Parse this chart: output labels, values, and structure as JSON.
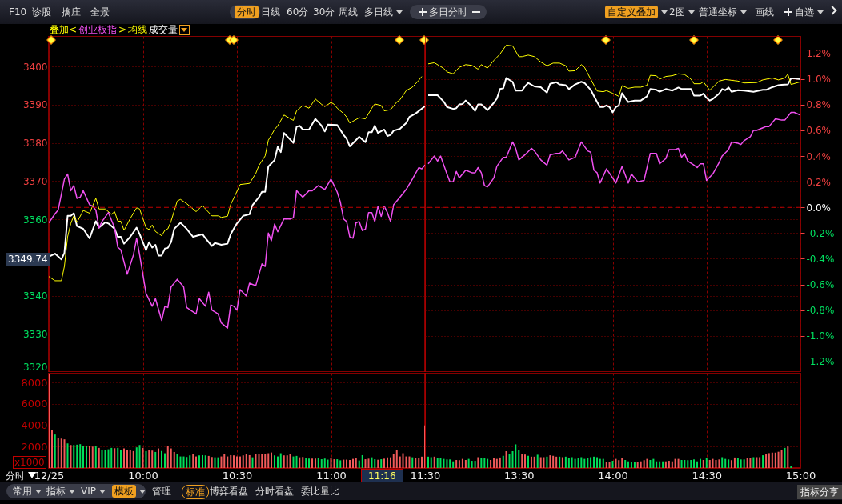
{
  "chart_data": [
    {
      "type": "other",
      "annotations": [
        "F10",
        "诊股",
        "擒庄",
        "全景",
        "分时",
        "日线",
        "60分",
        "30分",
        "周线",
        "多日线",
        "多日分时",
        "自定义叠加",
        "2图",
        "普通坐标",
        "画线",
        "自选"
      ]
    },
    {
      "type": "line",
      "annotations": [
        "叠加<",
        ">",
        "3349.74"
      ],
      "xlim": [
        9.5,
        11.5
      ],
      "xticks": [
        9.5,
        10,
        10.5,
        11,
        11.5
      ],
      "ylim": [
        3320,
        3408
      ],
      "yticks": [
        3320,
        3330,
        3340,
        {
          "value": 3350,
          "label": null
        },
        3360,
        3370,
        3380,
        3390,
        3400
      ],
      "y2lim": [
        -1.282,
        1.335
      ],
      "grid": true,
      "tick_labels": "y",
      "ref_lines": [
        {
          "axis": "y2",
          "value": 0,
          "color": "#c00000",
          "line_style": "dashed"
        }
      ],
      "series": [
        {
          "color": "#ffffff",
          "x": [
            9.5,
            9.533,
            9.567,
            9.583,
            9.6,
            9.617,
            9.633,
            9.65,
            9.683,
            9.717,
            9.75,
            9.767,
            9.8,
            9.817,
            9.85,
            9.867,
            9.883,
            9.9,
            9.933,
            9.967,
            9.983,
            10.017,
            10.033,
            10.05,
            10.067,
            10.083,
            10.1,
            10.117,
            10.133,
            10.15,
            10.167,
            10.2,
            10.233,
            10.267,
            10.317,
            10.333,
            10.367,
            10.383,
            10.417,
            10.45,
            10.467,
            10.483,
            10.5,
            10.533,
            10.567,
            10.583,
            10.617,
            10.633,
            10.65,
            10.667,
            10.7,
            10.717,
            10.733,
            10.75,
            10.8,
            10.817,
            10.833,
            10.85,
            10.883,
            10.917,
            10.95,
            10.967,
            10.983,
            11.033,
            11.067,
            11.083,
            11.1,
            11.15,
            11.183,
            11.2,
            11.217,
            11.233,
            11.25,
            11.283,
            11.3,
            11.317,
            11.333,
            11.367,
            11.4,
            11.417,
            11.45,
            11.5
          ],
          "values": [
            3350.2,
            3351.0,
            3349.5,
            3351.2,
            3360.9,
            3360.9,
            3361.6,
            3358.2,
            3357.5,
            3355.0,
            3359.5,
            3357.8,
            3359.2,
            3358.9,
            3357.5,
            3355.4,
            3355.4,
            3353.6,
            3355.4,
            3357.8,
            3356.1,
            3351.9,
            3354.0,
            3352.6,
            3353.3,
            3350.5,
            3350.5,
            3352.3,
            3352.5,
            3354.0,
            3357.5,
            3359.1,
            3357.5,
            3355.4,
            3356.1,
            3355.0,
            3353.0,
            3353.8,
            3353.3,
            3353.6,
            3356.1,
            3357.5,
            3358.9,
            3360.9,
            3361.3,
            3363.7,
            3365.8,
            3367.2,
            3367.2,
            3373.8,
            3375.5,
            3379.0,
            3377.6,
            3382.6,
            3380.0,
            3384.2,
            3384.5,
            3383.5,
            3383.5,
            3386.3,
            3384.5,
            3383.0,
            3384.8,
            3384.7,
            3382.1,
            3381.1,
            3379.1,
            3381.6,
            3380.2,
            3382.8,
            3382.8,
            3384.5,
            3382.6,
            3383.5,
            3381.8,
            3382.1,
            3383.2,
            3383.7,
            3385.2,
            3386.8,
            3387.7,
            3389.6
          ]
        },
        {
          "name": "创业板指",
          "color": "#f050f0",
          "axis": "y2",
          "x": [
            9.5,
            9.533,
            9.55,
            9.583,
            9.6,
            9.617,
            9.633,
            9.65,
            9.667,
            9.683,
            9.717,
            9.733,
            9.75,
            9.767,
            9.783,
            9.817,
            9.85,
            9.867,
            9.883,
            9.917,
            9.95,
            9.967,
            9.983,
            10.017,
            10.05,
            10.067,
            10.1,
            10.117,
            10.133,
            10.15,
            10.183,
            10.217,
            10.233,
            10.283,
            10.3,
            10.333,
            10.35,
            10.367,
            10.4,
            10.417,
            10.45,
            10.467,
            10.483,
            10.5,
            10.517,
            10.55,
            10.567,
            10.6,
            10.633,
            10.65,
            10.667,
            10.683,
            10.7,
            10.717,
            10.75,
            10.783,
            10.8,
            10.817,
            10.85,
            10.883,
            10.9,
            10.933,
            10.967,
            11,
            11.033,
            11.05,
            11.067,
            11.083,
            11.1,
            11.117,
            11.133,
            11.15,
            11.167,
            11.183,
            11.2,
            11.217,
            11.233,
            11.25,
            11.267,
            11.283,
            11.3,
            11.317,
            11.333,
            11.367,
            11.4,
            11.433,
            11.467,
            11.483,
            11.5
          ],
          "values": [
            -0.12,
            -0.05,
            -0.02,
            0.22,
            0.26,
            0.13,
            0.17,
            0.07,
            0.08,
            0.13,
            0.02,
            0.01,
            -0.02,
            -0.16,
            -0.11,
            -0.04,
            -0.16,
            -0.31,
            -0.33,
            -0.52,
            -0.37,
            -0.24,
            -0.37,
            -0.67,
            -0.77,
            -0.71,
            -0.88,
            -0.77,
            -0.78,
            -0.62,
            -0.56,
            -0.62,
            -0.78,
            -0.83,
            -0.71,
            -0.77,
            -0.66,
            -0.8,
            -0.83,
            -0.9,
            -0.94,
            -0.76,
            -0.77,
            -0.8,
            -0.64,
            -0.69,
            -0.59,
            -0.61,
            -0.44,
            -0.46,
            -0.2,
            -0.26,
            -0.13,
            -0.19,
            -0.09,
            -0.09,
            -0.08,
            0.13,
            0.08,
            0.13,
            0.13,
            0.17,
            0.14,
            0.22,
            0.12,
            0.04,
            -0.09,
            -0.11,
            -0.23,
            -0.24,
            -0.12,
            -0.11,
            -0.18,
            -0.17,
            -0.04,
            -0.04,
            -0.11,
            0.01,
            -0.07,
            0.01,
            -0.04,
            -0.11,
            0.02,
            0.08,
            0.14,
            0.22,
            0.31,
            0.3,
            0.33
          ]
        },
        {
          "name": "均线",
          "color": "#ffff00",
          "x": [
            9.5,
            9.533,
            9.567,
            9.583,
            9.6,
            9.617,
            9.633,
            9.65,
            9.683,
            9.717,
            9.75,
            9.767,
            9.8,
            9.833,
            9.85,
            9.867,
            9.883,
            9.9,
            9.933,
            9.967,
            9.983,
            10.017,
            10.033,
            10.05,
            10.067,
            10.1,
            10.117,
            10.133,
            10.15,
            10.183,
            10.2,
            10.233,
            10.25,
            10.283,
            10.317,
            10.333,
            10.367,
            10.4,
            10.417,
            10.45,
            10.467,
            10.483,
            10.517,
            10.567,
            10.6,
            10.617,
            10.65,
            10.667,
            10.7,
            10.717,
            10.75,
            10.8,
            10.817,
            10.85,
            10.883,
            10.917,
            10.95,
            10.967,
            11,
            11.017,
            11.033,
            11.067,
            11.083,
            11.1,
            11.15,
            11.183,
            11.217,
            11.233,
            11.267,
            11.283,
            11.317,
            11.35,
            11.367,
            11.4,
            11.433,
            11.467,
            11.483
          ],
          "values": [
            3345.0,
            3343.9,
            3343.9,
            3347.7,
            3355.4,
            3358.9,
            3360.9,
            3359.2,
            3362.3,
            3361.6,
            3365.5,
            3362.7,
            3362.7,
            3361.3,
            3362.0,
            3359.5,
            3359.5,
            3357.1,
            3360.2,
            3363.0,
            3362.7,
            3357.8,
            3357.3,
            3358.5,
            3356.8,
            3355.7,
            3357.1,
            3357.5,
            3359.5,
            3364.8,
            3365.2,
            3364.1,
            3363.4,
            3362.0,
            3363.6,
            3362.7,
            3360.9,
            3360.9,
            3360.5,
            3360.8,
            3363.9,
            3365.5,
            3369.1,
            3369.4,
            3372.0,
            3374.1,
            3376.6,
            3380.7,
            3383.5,
            3384.5,
            3387.3,
            3385.9,
            3388.4,
            3389.8,
            3389.1,
            3391.5,
            3390.1,
            3389.5,
            3390.6,
            3390.1,
            3389.1,
            3387.7,
            3386.8,
            3385.2,
            3386.6,
            3386.3,
            3389.1,
            3390.2,
            3389.8,
            3388.4,
            3388.7,
            3390.7,
            3391.3,
            3393.7,
            3394.6,
            3396.4,
            3397.4
          ]
        }
      ]
    },
    {
      "type": "line",
      "xlim": [
        13,
        15
      ],
      "ylim": [
        3320,
        3408
      ],
      "y2lim": [
        -1.282,
        1.335
      ],
      "y2ticks": [
        {
          "value": -1.2,
          "label": "-1.2%"
        },
        {
          "value": -1.0,
          "label": "-1.0%"
        },
        {
          "value": -0.8,
          "label": "-0.8%"
        },
        {
          "value": -0.6,
          "label": "-0.6%"
        },
        {
          "value": -0.4,
          "label": "-0.4%"
        },
        {
          "value": -0.2,
          "label": "-0.2%"
        },
        {
          "value": 0,
          "label": "0.0%"
        },
        {
          "value": 0.2,
          "label": "0.2%"
        },
        {
          "value": 0.4,
          "label": "0.4%"
        },
        {
          "value": 0.6,
          "label": "0.6%"
        },
        {
          "value": 0.8,
          "label": "0.8%"
        },
        {
          "value": 1.0,
          "label": "1.0%"
        },
        {
          "value": 1.2,
          "label": "1.2%"
        }
      ],
      "grid": true,
      "tick_labels": "y2",
      "ref_lines": [
        {
          "axis": "y2",
          "value": 0,
          "color": "#c00000",
          "line_style": "dashed"
        }
      ],
      "series": [
        {
          "color": "#ffffff",
          "x": [
            13.017,
            13.067,
            13.1,
            13.117,
            13.15,
            13.167,
            13.183,
            13.2,
            13.217,
            13.25,
            13.267,
            13.283,
            13.3,
            13.333,
            13.367,
            13.383,
            13.4,
            13.417,
            13.433,
            13.467,
            13.483,
            13.517,
            13.533,
            13.55,
            13.583,
            13.617,
            13.65,
            13.667,
            13.7,
            13.717,
            13.75,
            13.767,
            13.8,
            13.833,
            13.85,
            13.883,
            13.917,
            13.933,
            13.95,
            13.967,
            13.983,
            14,
            14.017,
            14.033,
            14.05,
            14.067,
            14.083,
            14.117,
            14.15,
            14.183,
            14.2,
            14.233,
            14.25,
            14.283,
            14.317,
            14.35,
            14.367,
            14.417,
            14.433,
            14.467,
            14.483,
            14.5,
            14.517,
            14.533,
            14.567,
            14.583,
            14.6,
            14.617,
            14.633,
            14.667,
            14.7,
            14.75,
            14.8,
            14.817,
            14.85,
            14.883,
            14.9,
            14.933,
            14.95,
            14.967,
            15
          ],
          "values": [
            3392.5,
            3392.5,
            3390.8,
            3389.4,
            3388.9,
            3389.1,
            3390.1,
            3390.2,
            3391.1,
            3389.5,
            3388.4,
            3390.1,
            3390.1,
            3388.6,
            3390.5,
            3391.6,
            3394.1,
            3394.3,
            3397.0,
            3396.0,
            3393.7,
            3393.7,
            3394.8,
            3395.7,
            3394.8,
            3394.6,
            3393.2,
            3395.5,
            3395.9,
            3395.3,
            3395.1,
            3394.1,
            3395.3,
            3396.0,
            3395.7,
            3393.9,
            3390.7,
            3389.4,
            3389.4,
            3389.8,
            3389.4,
            3388.0,
            3389.4,
            3389.8,
            3393.0,
            3391.8,
            3390.7,
            3391.1,
            3391.1,
            3392.2,
            3394.1,
            3393.9,
            3393.4,
            3394.1,
            3393.7,
            3394.5,
            3394.1,
            3394.1,
            3392.4,
            3392.4,
            3392.9,
            3391.8,
            3391.1,
            3391.5,
            3392.9,
            3394.1,
            3393.8,
            3394.5,
            3393.4,
            3393.8,
            3393.7,
            3393.4,
            3393.9,
            3393.9,
            3394.6,
            3395.1,
            3395.2,
            3395.3,
            3396.9,
            3396.9,
            3396.7
          ]
        },
        {
          "color": "#f050f0",
          "axis": "y2",
          "x": [
            13.017,
            13.05,
            13.067,
            13.083,
            13.117,
            13.133,
            13.15,
            13.167,
            13.183,
            13.217,
            13.25,
            13.267,
            13.283,
            13.3,
            13.317,
            13.333,
            13.367,
            13.383,
            13.417,
            13.433,
            13.45,
            13.467,
            13.483,
            13.5,
            13.533,
            13.567,
            13.583,
            13.617,
            13.633,
            13.65,
            13.667,
            13.7,
            13.717,
            13.733,
            13.767,
            13.8,
            13.833,
            13.867,
            13.883,
            13.9,
            13.917,
            13.933,
            13.967,
            14,
            14.017,
            14.05,
            14.083,
            14.1,
            14.133,
            14.167,
            14.2,
            14.233,
            14.25,
            14.283,
            14.3,
            14.333,
            14.35,
            14.367,
            14.383,
            14.4,
            14.433,
            14.45,
            14.467,
            14.483,
            14.5,
            14.533,
            14.567,
            14.583,
            14.617,
            14.633,
            14.667,
            14.683,
            14.7,
            14.733,
            14.75,
            14.767,
            14.8,
            14.817,
            14.833,
            14.867,
            14.9,
            14.917,
            14.95,
            14.967,
            15
          ],
          "values": [
            0.34,
            0.4,
            0.36,
            0.4,
            0.26,
            0.2,
            0.2,
            0.28,
            0.23,
            0.29,
            0.27,
            0.27,
            0.31,
            0.27,
            0.17,
            0.16,
            0.23,
            0.32,
            0.39,
            0.39,
            0.45,
            0.51,
            0.46,
            0.37,
            0.41,
            0.46,
            0.44,
            0.37,
            0.35,
            0.33,
            0.41,
            0.42,
            0.42,
            0.44,
            0.37,
            0.39,
            0.51,
            0.44,
            0.43,
            0.29,
            0.27,
            0.19,
            0.3,
            0.23,
            0.19,
            0.32,
            0.19,
            0.26,
            0.2,
            0.21,
            0.42,
            0.42,
            0.34,
            0.38,
            0.45,
            0.45,
            0.46,
            0.39,
            0.42,
            0.36,
            0.33,
            0.31,
            0.34,
            0.34,
            0.21,
            0.26,
            0.35,
            0.4,
            0.45,
            0.51,
            0.5,
            0.49,
            0.52,
            0.55,
            0.6,
            0.6,
            0.62,
            0.63,
            0.63,
            0.69,
            0.68,
            0.68,
            0.74,
            0.74,
            0.72
          ]
        },
        {
          "color": "#ffff00",
          "x": [
            13.017,
            13.05,
            13.1,
            13.117,
            13.15,
            13.183,
            13.217,
            13.25,
            13.283,
            13.3,
            13.333,
            13.367,
            13.4,
            13.433,
            13.467,
            13.5,
            13.517,
            13.55,
            13.583,
            13.617,
            13.65,
            13.683,
            13.717,
            13.75,
            13.767,
            13.8,
            13.833,
            13.85,
            13.883,
            13.917,
            13.95,
            13.967,
            14,
            14.033,
            14.05,
            14.083,
            14.117,
            14.15,
            14.183,
            14.2,
            14.233,
            14.25,
            14.283,
            14.317,
            14.35,
            14.383,
            14.417,
            14.433,
            14.467,
            14.483,
            14.517,
            14.567,
            14.6,
            14.667,
            14.7,
            14.767,
            14.8,
            14.85,
            14.883,
            14.917,
            14.933,
            14.95,
            15
          ],
          "values": [
            3400.7,
            3401.0,
            3399.5,
            3398.6,
            3398.1,
            3399.8,
            3400.5,
            3400.3,
            3399.3,
            3400.5,
            3399.6,
            3401.6,
            3403.3,
            3405.6,
            3405.4,
            3402.6,
            3402.6,
            3403.0,
            3402.6,
            3401.2,
            3400.2,
            3400.9,
            3400.9,
            3400.2,
            3398.8,
            3398.9,
            3400.5,
            3399.8,
            3396.7,
            3393.6,
            3393.4,
            3393.7,
            3393.0,
            3392.2,
            3395.0,
            3394.3,
            3394.6,
            3394.6,
            3395.1,
            3397.7,
            3397.6,
            3396.7,
            3397.4,
            3397.6,
            3398.1,
            3397.9,
            3396.7,
            3395.5,
            3395.5,
            3396.0,
            3393.8,
            3396.2,
            3396.6,
            3396.2,
            3395.7,
            3395.8,
            3396.5,
            3397.0,
            3396.5,
            3397.0,
            3398.0,
            3395.3,
            3396.0
          ]
        }
      ]
    },
    {
      "type": "bar",
      "title": "成交量",
      "ylabel": "x1000",
      "annotations": [
        "分时",
        "11:16"
      ],
      "grid": true,
      "xlim": [
        9.5,
        11.5
      ],
      "xticks": [
        {
          "value": 9.5,
          "label": "12/25"
        },
        {
          "value": 10,
          "label": "10:00"
        },
        {
          "value": 10.5,
          "label": "10:30"
        },
        {
          "value": 11,
          "label": "11:00"
        },
        {
          "value": 11.5,
          "label": "11:30"
        }
      ],
      "ylim": [
        0,
        8900
      ],
      "yticks": [
        2000,
        4000,
        6000,
        8000
      ],
      "x": [
        9.5,
        9.517,
        9.533,
        9.55,
        9.567,
        9.583,
        9.6,
        9.617,
        9.633,
        9.65,
        9.667,
        9.683,
        9.7,
        9.717,
        9.733,
        9.75,
        9.767,
        9.783,
        9.8,
        9.817,
        9.833,
        9.85,
        9.867,
        9.883,
        9.9,
        9.917,
        9.933,
        9.95,
        9.967,
        9.983,
        10,
        10.017,
        10.033,
        10.05,
        10.067,
        10.083,
        10.1,
        10.117,
        10.133,
        10.15,
        10.167,
        10.183,
        10.2,
        10.217,
        10.233,
        10.25,
        10.267,
        10.283,
        10.3,
        10.317,
        10.333,
        10.35,
        10.367,
        10.383,
        10.4,
        10.417,
        10.433,
        10.45,
        10.467,
        10.483,
        10.5,
        10.517,
        10.533,
        10.55,
        10.567,
        10.583,
        10.6,
        10.617,
        10.633,
        10.65,
        10.667,
        10.683,
        10.7,
        10.717,
        10.733,
        10.75,
        10.767,
        10.783,
        10.8,
        10.817,
        10.833,
        10.85,
        10.867,
        10.883,
        10.9,
        10.917,
        10.933,
        10.95,
        10.967,
        10.983,
        11,
        11.017,
        11.033,
        11.05,
        11.067,
        11.083,
        11.1,
        11.117,
        11.133,
        11.15,
        11.167,
        11.183,
        11.2,
        11.217,
        11.233,
        11.25,
        11.267,
        11.283,
        11.3,
        11.317,
        11.333,
        11.35,
        11.367,
        11.383,
        11.4,
        11.417,
        11.433,
        11.45,
        11.467,
        11.483,
        11.5
      ],
      "values": [
        8800,
        3580,
        3130,
        2780,
        2750,
        2680,
        2300,
        2150,
        2150,
        2180,
        2230,
        2080,
        2080,
        2050,
        2000,
        2080,
        1880,
        1700,
        1700,
        1750,
        1880,
        1850,
        1880,
        1700,
        1830,
        1680,
        1680,
        1580,
        1930,
        2150,
        1880,
        1580,
        1700,
        1630,
        1500,
        1830,
        1580,
        1380,
        2030,
        1830,
        1500,
        1280,
        1080,
        1080,
        1030,
        1180,
        1280,
        1080,
        1180,
        1200,
        1180,
        1130,
        1030,
        1000,
        1000,
        1080,
        1280,
        1080,
        1200,
        1180,
        1080,
        1080,
        1180,
        1280,
        1200,
        1000,
        1330,
        1330,
        1330,
        1280,
        1380,
        1450,
        1180,
        1080,
        1380,
        1180,
        1180,
        1330,
        1080,
        1130,
        1000,
        1030,
        930,
        880,
        880,
        880,
        930,
        820,
        880,
        780,
        930,
        820,
        820,
        720,
        780,
        780,
        750,
        850,
        930,
        700,
        1200,
        820,
        870,
        1000,
        820,
        770,
        820,
        870,
        1000,
        1000,
        1280,
        1700,
        1080,
        1380,
        1080,
        1080,
        1000,
        930,
        930,
        1060,
        3980
      ],
      "colors": [
        "#f05a5a",
        "#f05a5a",
        "#00e05a",
        "#f05a5a",
        "#f05a5a",
        "#f05a5a",
        "#00e05a",
        "#f05a5a",
        "#00e05a",
        "#00e05a",
        "#00e05a",
        "#00e05a",
        "#00e05a",
        "#f05a5a",
        "#f05a5a",
        "#00e05a",
        "#f05a5a",
        "#00e05a",
        "#00e05a",
        "#00e05a",
        "#00e05a",
        "#f05a5a",
        "#00e05a",
        "#00e05a",
        "#f05a5a",
        "#f05a5a",
        "#f05a5a",
        "#f05a5a",
        "#00e05a",
        "#00e05a",
        "#f05a5a",
        "#00e05a",
        "#f05a5a",
        "#f05a5a",
        "#00e05a",
        "#f05a5a",
        "#00e05a",
        "#00e05a",
        "#f05a5a",
        "#f05a5a",
        "#f05a5a",
        "#00e05a",
        "#00e05a",
        "#00e05a",
        "#00e05a",
        "#00e05a",
        "#f05a5a",
        "#f05a5a",
        "#00e05a",
        "#00e05a",
        "#00e05a",
        "#f05a5a",
        "#f05a5a",
        "#00e05a",
        "#00e05a",
        "#f05a5a",
        "#f05a5a",
        "#f05a5a",
        "#f05a5a",
        "#f05a5a",
        "#f05a5a",
        "#f05a5a",
        "#f05a5a",
        "#f05a5a",
        "#f05a5a",
        "#00e05a",
        "#f05a5a",
        "#f05a5a",
        "#f05a5a",
        "#f05a5a",
        "#f05a5a",
        "#f05a5a",
        "#00e05a",
        "#00e05a",
        "#00e05a",
        "#f05a5a",
        "#f05a5a",
        "#f05a5a",
        "#00e05a",
        "#00e05a",
        "#f05a5a",
        "#f05a5a",
        "#00e05a",
        "#00e05a",
        "#f05a5a",
        "#f05a5a",
        "#00e05a",
        "#00e05a",
        "#00e05a",
        "#00e05a",
        "#f05a5a",
        "#f05a5a",
        "#00e05a",
        "#00e05a",
        "#f05a5a",
        "#f05a5a",
        "#f05a5a",
        "#f05a5a",
        "#f05a5a",
        "#00e05a",
        "#00e05a",
        "#f05a5a",
        "#f05a5a",
        "#00e05a",
        "#00e05a",
        "#f05a5a",
        "#00e05a",
        "#f05a5a",
        "#f05a5a",
        "#f05a5a",
        "#f05a5a",
        "#f05a5a",
        "#f05a5a",
        "#f05a5a",
        "#f05a5a",
        "#f05a5a",
        "#00e05a",
        "#f05a5a",
        "#f05a5a",
        "#f05a5a",
        "#f05a5a"
      ]
    },
    {
      "type": "bar",
      "grid": true,
      "tick_labels": "x",
      "xlim": [
        13,
        15
      ],
      "xticks": [
        {
          "value": 13.5,
          "label": "13:30"
        },
        {
          "value": 14,
          "label": "14:00"
        },
        {
          "value": 14.5,
          "label": "14:30"
        },
        {
          "value": 15,
          "label": "15:00"
        }
      ],
      "ylim": [
        0,
        8900
      ],
      "yticks": [
        2000,
        4000,
        6000,
        8000
      ],
      "x": [
        13.017,
        13.033,
        13.05,
        13.067,
        13.083,
        13.1,
        13.117,
        13.133,
        13.15,
        13.167,
        13.183,
        13.2,
        13.217,
        13.233,
        13.25,
        13.267,
        13.283,
        13.3,
        13.317,
        13.333,
        13.35,
        13.367,
        13.383,
        13.4,
        13.417,
        13.433,
        13.45,
        13.467,
        13.483,
        13.5,
        13.517,
        13.533,
        13.55,
        13.567,
        13.583,
        13.6,
        13.617,
        13.633,
        13.65,
        13.667,
        13.683,
        13.7,
        13.717,
        13.733,
        13.75,
        13.767,
        13.783,
        13.8,
        13.817,
        13.833,
        13.85,
        13.867,
        13.883,
        13.9,
        13.917,
        13.933,
        13.95,
        13.967,
        13.983,
        14,
        14.017,
        14.033,
        14.05,
        14.067,
        14.083,
        14.1,
        14.117,
        14.133,
        14.15,
        14.167,
        14.183,
        14.2,
        14.217,
        14.233,
        14.25,
        14.267,
        14.283,
        14.3,
        14.317,
        14.333,
        14.35,
        14.367,
        14.383,
        14.4,
        14.417,
        14.433,
        14.45,
        14.467,
        14.483,
        14.5,
        14.517,
        14.533,
        14.55,
        14.567,
        14.583,
        14.6,
        14.617,
        14.633,
        14.65,
        14.667,
        14.683,
        14.7,
        14.717,
        14.733,
        14.75,
        14.767,
        14.783,
        14.8,
        14.817,
        14.833,
        14.85,
        14.867,
        14.883,
        14.9,
        14.917,
        14.933,
        14.95,
        14.967,
        14.983,
        15
      ],
      "values": [
        1060,
        1010,
        1060,
        930,
        930,
        850,
        800,
        800,
        620,
        750,
        730,
        850,
        750,
        850,
        670,
        670,
        1010,
        930,
        930,
        850,
        750,
        930,
        850,
        980,
        1140,
        1570,
        1310,
        1570,
        2210,
        1700,
        1310,
        1260,
        1140,
        1060,
        1060,
        1240,
        1010,
        1010,
        1060,
        1190,
        1140,
        1060,
        1060,
        1010,
        1060,
        930,
        1010,
        850,
        930,
        1010,
        850,
        930,
        1010,
        1060,
        1010,
        850,
        850,
        600,
        600,
        670,
        850,
        730,
        930,
        750,
        620,
        600,
        550,
        550,
        620,
        730,
        850,
        750,
        850,
        620,
        620,
        620,
        620,
        670,
        620,
        850,
        850,
        750,
        750,
        730,
        750,
        800,
        620,
        850,
        750,
        930,
        750,
        850,
        750,
        800,
        1010,
        850,
        800,
        730,
        980,
        930,
        800,
        800,
        930,
        930,
        1010,
        1010,
        1010,
        1190,
        1310,
        1390,
        1440,
        1440,
        1520,
        1700,
        1880,
        2010,
        200,
        null,
        null,
        3960
      ],
      "colors": [
        "#00e05a",
        "#00e05a",
        "#f05a5a",
        "#00e05a",
        "#00e05a",
        "#00e05a",
        "#00e05a",
        "#00e05a",
        "#00e05a",
        "#f05a5a",
        "#f05a5a",
        "#f05a5a",
        "#f05a5a",
        "#00e05a",
        "#00e05a",
        "#00e05a",
        "#f05a5a",
        "#00e05a",
        "#00e05a",
        "#00e05a",
        "#f05a5a",
        "#f05a5a",
        "#f05a5a",
        "#f05a5a",
        "#00e05a",
        "#f05a5a",
        "#00e05a",
        "#00e05a",
        "#00e05a",
        "#00e05a",
        "#f05a5a",
        "#f05a5a",
        "#00e05a",
        "#f05a5a",
        "#f05a5a",
        "#00e05a",
        "#f05a5a",
        "#f05a5a",
        "#00e05a",
        "#f05a5a",
        "#f05a5a",
        "#f05a5a",
        "#00e05a",
        "#f05a5a",
        "#00e05a",
        "#00e05a",
        "#00e05a",
        "#00e05a",
        "#00e05a",
        "#00e05a",
        "#00e05a",
        "#00e05a",
        "#00e05a",
        "#00e05a",
        "#00e05a",
        "#00e05a",
        "#00e05a",
        "#f05a5a",
        "#f05a5a",
        "#00e05a",
        "#f05a5a",
        "#f05a5a",
        "#f05a5a",
        "#00e05a",
        "#00e05a",
        "#00e05a",
        "#00e05a",
        "#f05a5a",
        "#f05a5a",
        "#f05a5a",
        "#f05a5a",
        "#00e05a",
        "#00e05a",
        "#00e05a",
        "#00e05a",
        "#00e05a",
        "#f05a5a",
        "#f05a5a",
        "#f05a5a",
        "#f05a5a",
        "#f05a5a",
        "#00e05a",
        "#00e05a",
        "#00e05a",
        "#00e05a",
        "#00e05a",
        "#00e05a",
        "#00e05a",
        "#f05a5a",
        "#00e05a",
        "#f05a5a",
        "#f05a5a",
        "#f05a5a",
        "#f05a5a",
        "#00e05a",
        "#00e05a",
        "#00e05a",
        "#f05a5a",
        "#f05a5a",
        "#00e05a",
        "#00e05a",
        "#00e05a",
        "#f05a5a",
        "#f05a5a",
        "#00e05a",
        "#f05a5a",
        "#f05a5a",
        "#00e05a",
        "#f05a5a",
        "#f05a5a",
        "#f05a5a",
        "#f05a5a",
        "#f05a5a",
        "#f05a5a",
        "#00e05a",
        "#f05a5a",
        "#00e05a",
        null,
        null,
        "#00e05a"
      ]
    },
    {
      "type": "other",
      "annotations": [
        "常用",
        "指标",
        "VIP",
        "模板",
        "管理",
        "标准",
        "博弈看盘",
        "分时看盘",
        "委比量比",
        "指标分享"
      ]
    }
  ]
}
